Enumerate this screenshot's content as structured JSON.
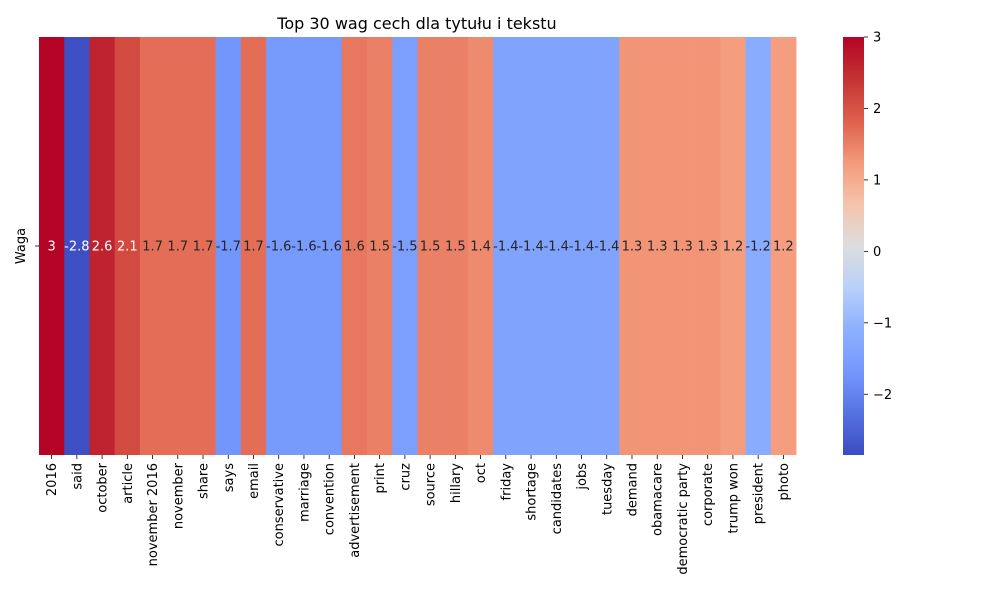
{
  "chart_data": {
    "type": "heatmap",
    "title": "Top 30 wag cech dla tytułu i tekstu",
    "ylabel": "Waga",
    "xlabel": "",
    "row_labels": [
      "Waga"
    ],
    "categories": [
      "2016",
      "said",
      "october",
      "article",
      "november 2016",
      "november",
      "share",
      "says",
      "email",
      "conservative",
      "marriage",
      "convention",
      "advertisement",
      "print",
      "cruz",
      "source",
      "hillary",
      "oct",
      "friday",
      "shortage",
      "candidates",
      "jobs",
      "tuesday",
      "demand",
      "obamacare",
      "democratic party",
      "corporate",
      "trump won",
      "president",
      "photo"
    ],
    "values": [
      3.0,
      -2.8,
      2.6,
      2.1,
      1.7,
      1.7,
      1.7,
      -1.7,
      1.7,
      -1.6,
      -1.6,
      -1.6,
      1.6,
      1.5,
      -1.5,
      1.5,
      1.5,
      1.4,
      -1.4,
      -1.4,
      -1.4,
      -1.4,
      -1.4,
      1.3,
      1.3,
      1.3,
      1.3,
      1.2,
      -1.2,
      1.2
    ],
    "annotations": [
      "3",
      "-2.8",
      "2.6",
      "2.1",
      "1.7",
      "1.7",
      "1.7",
      "-1.7",
      "1.7",
      "-1.6",
      "-1.6",
      "-1.6",
      "1.6",
      "1.5",
      "-1.5",
      "1.5",
      "1.5",
      "1.4",
      "-1.4",
      "-1.4",
      "-1.4",
      "-1.4",
      "-1.4",
      "1.3",
      "1.3",
      "1.3",
      "1.3",
      "1.2",
      "-1.2",
      "1.2"
    ],
    "colormap": "coolwarm",
    "vmin": -2.85,
    "vmax": 3.0,
    "colorbar": {
      "ticks": [
        -2,
        -1,
        0,
        1,
        2,
        3
      ],
      "tick_labels": [
        "−2",
        "−1",
        "0",
        "1",
        "2",
        "3"
      ]
    },
    "grid": false,
    "legend": "colorbar-right"
  }
}
